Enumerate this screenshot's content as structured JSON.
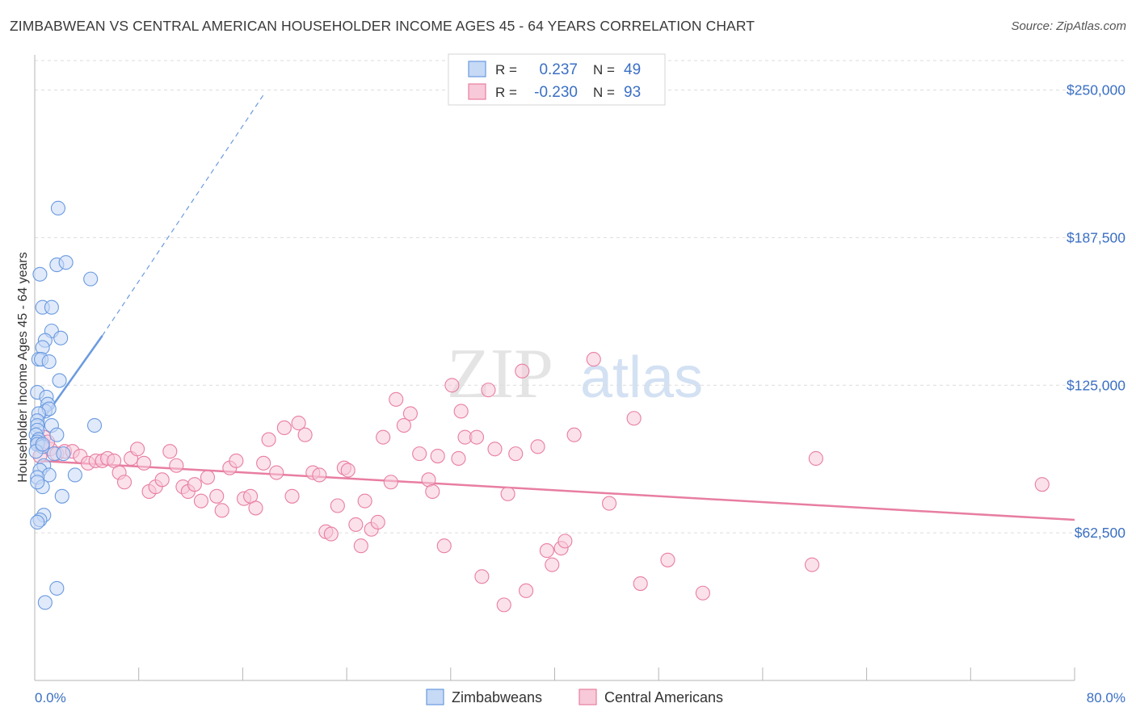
{
  "chart_data": {
    "type": "scatter",
    "title": "ZIMBABWEAN VS CENTRAL AMERICAN HOUSEHOLDER INCOME AGES 45 - 64 YEARS CORRELATION CHART",
    "source": "Source: ZipAtlas.com",
    "xlabel": "",
    "ylabel": "Householder Income Ages 45 - 64 years",
    "xlim": [
      0,
      80
    ],
    "ylim": [
      0,
      262500
    ],
    "x_tick_labels": [
      "0.0%",
      "80.0%"
    ],
    "y_ticks": [
      {
        "value": 62500,
        "label": "$62,500"
      },
      {
        "value": 125000,
        "label": "$125,000"
      },
      {
        "value": 187500,
        "label": "$187,500"
      },
      {
        "value": 250000,
        "label": "$250,000"
      }
    ],
    "watermark": {
      "zip": "ZIP",
      "atlas": "atlas"
    },
    "legend": {
      "r_label": "R =",
      "n_label": "N =",
      "rows": [
        {
          "r": "0.237",
          "n": "49"
        },
        {
          "r": "-0.230",
          "n": "93"
        }
      ]
    },
    "series": [
      {
        "name": "Zimbabweans",
        "color": "#6a9ae0",
        "fill": "#c6d9f5",
        "trend": {
          "x0": 0.3,
          "y0": 108000,
          "x1": 5.2,
          "y1": 146000,
          "dash_to_x": 17.6,
          "dash_to_y": 248000
        },
        "points": [
          [
            1.8,
            200000
          ],
          [
            1.7,
            176000
          ],
          [
            4.3,
            170000
          ],
          [
            0.4,
            172000
          ],
          [
            2.4,
            177000
          ],
          [
            0.6,
            158000
          ],
          [
            1.3,
            158000
          ],
          [
            1.3,
            148000
          ],
          [
            0.8,
            144000
          ],
          [
            2.0,
            145000
          ],
          [
            0.6,
            141000
          ],
          [
            0.3,
            136000
          ],
          [
            0.5,
            136000
          ],
          [
            1.1,
            135000
          ],
          [
            1.9,
            127000
          ],
          [
            0.2,
            122000
          ],
          [
            0.9,
            120000
          ],
          [
            1.0,
            117000
          ],
          [
            0.8,
            114000
          ],
          [
            1.1,
            115000
          ],
          [
            0.3,
            113000
          ],
          [
            0.2,
            110000
          ],
          [
            4.6,
            108000
          ],
          [
            0.2,
            108000
          ],
          [
            1.3,
            108000
          ],
          [
            0.2,
            106000
          ],
          [
            0.1,
            104000
          ],
          [
            1.7,
            104000
          ],
          [
            0.3,
            102000
          ],
          [
            0.2,
            101000
          ],
          [
            0.2,
            100000
          ],
          [
            0.6,
            99000
          ],
          [
            0.1,
            97000
          ],
          [
            1.5,
            96000
          ],
          [
            2.2,
            96000
          ],
          [
            0.7,
            91000
          ],
          [
            0.4,
            89000
          ],
          [
            1.1,
            87000
          ],
          [
            3.1,
            87000
          ],
          [
            0.2,
            86000
          ],
          [
            0.6,
            82000
          ],
          [
            2.1,
            78000
          ],
          [
            0.2,
            84000
          ],
          [
            0.7,
            70000
          ],
          [
            0.4,
            68000
          ],
          [
            0.2,
            67000
          ],
          [
            1.7,
            39000
          ],
          [
            0.8,
            33000
          ],
          [
            0.6,
            100000
          ]
        ]
      },
      {
        "name": "Central Americans",
        "color": "#e87ea1",
        "fill": "#f8c9d8",
        "trend": {
          "x0": 0.3,
          "y0": 93000,
          "x1": 80,
          "y1": 68000
        },
        "points": [
          [
            0.5,
            100000
          ],
          [
            0.7,
            103000
          ],
          [
            1.2,
            98000
          ],
          [
            1.7,
            96000
          ],
          [
            2.3,
            97000
          ],
          [
            2.9,
            97000
          ],
          [
            3.5,
            95000
          ],
          [
            4.1,
            92000
          ],
          [
            4.7,
            93000
          ],
          [
            5.2,
            93000
          ],
          [
            5.6,
            94000
          ],
          [
            6.1,
            93000
          ],
          [
            6.5,
            88000
          ],
          [
            6.9,
            84000
          ],
          [
            7.4,
            94000
          ],
          [
            7.9,
            98000
          ],
          [
            8.4,
            92000
          ],
          [
            8.8,
            80000
          ],
          [
            9.3,
            82000
          ],
          [
            9.8,
            85000
          ],
          [
            10.4,
            97000
          ],
          [
            10.9,
            91000
          ],
          [
            11.4,
            82000
          ],
          [
            11.8,
            80000
          ],
          [
            12.3,
            83000
          ],
          [
            12.8,
            76000
          ],
          [
            13.3,
            86000
          ],
          [
            14.0,
            78000
          ],
          [
            14.4,
            72000
          ],
          [
            15.0,
            90000
          ],
          [
            15.5,
            93000
          ],
          [
            16.1,
            77000
          ],
          [
            16.6,
            78000
          ],
          [
            17.0,
            73000
          ],
          [
            17.6,
            92000
          ],
          [
            18.0,
            102000
          ],
          [
            18.6,
            88000
          ],
          [
            19.2,
            107000
          ],
          [
            19.8,
            78000
          ],
          [
            20.3,
            109000
          ],
          [
            20.8,
            104000
          ],
          [
            21.4,
            88000
          ],
          [
            21.9,
            87000
          ],
          [
            22.4,
            63000
          ],
          [
            22.8,
            62000
          ],
          [
            23.3,
            74000
          ],
          [
            23.8,
            90000
          ],
          [
            24.1,
            89000
          ],
          [
            24.7,
            66000
          ],
          [
            25.1,
            57000
          ],
          [
            25.4,
            76000
          ],
          [
            25.9,
            64000
          ],
          [
            26.4,
            67000
          ],
          [
            26.8,
            103000
          ],
          [
            27.4,
            84000
          ],
          [
            27.8,
            119000
          ],
          [
            28.4,
            108000
          ],
          [
            28.9,
            113000
          ],
          [
            29.6,
            96000
          ],
          [
            30.3,
            85000
          ],
          [
            30.6,
            80000
          ],
          [
            31.0,
            95000
          ],
          [
            31.5,
            57000
          ],
          [
            32.1,
            125000
          ],
          [
            32.6,
            94000
          ],
          [
            32.8,
            114000
          ],
          [
            33.1,
            103000
          ],
          [
            34.0,
            103000
          ],
          [
            34.4,
            44000
          ],
          [
            34.9,
            123000
          ],
          [
            35.4,
            98000
          ],
          [
            36.1,
            32000
          ],
          [
            36.4,
            79000
          ],
          [
            37.0,
            96000
          ],
          [
            37.5,
            131000
          ],
          [
            37.8,
            38000
          ],
          [
            38.7,
            99000
          ],
          [
            39.4,
            55000
          ],
          [
            39.8,
            49000
          ],
          [
            40.5,
            56000
          ],
          [
            40.8,
            59000
          ],
          [
            41.5,
            104000
          ],
          [
            43.0,
            136000
          ],
          [
            44.2,
            75000
          ],
          [
            46.1,
            111000
          ],
          [
            46.6,
            41000
          ],
          [
            48.7,
            51000
          ],
          [
            51.4,
            37000
          ],
          [
            59.8,
            49000
          ],
          [
            60.1,
            94000
          ],
          [
            77.5,
            83000
          ],
          [
            0.4,
            95000
          ],
          [
            1.0,
            101000
          ]
        ]
      }
    ]
  }
}
